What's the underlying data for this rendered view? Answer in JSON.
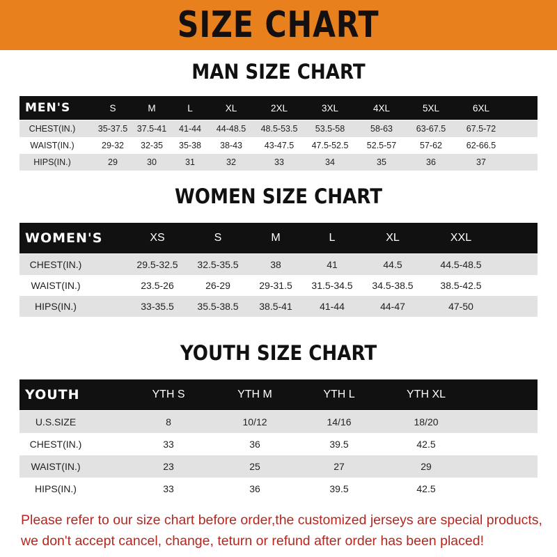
{
  "banner": {
    "title": "SIZE CHART",
    "color": "#e8801e"
  },
  "men": {
    "title": "MAN SIZE CHART",
    "header": [
      "MEN'S",
      "S",
      "M",
      "L",
      "XL",
      "2XL",
      "3XL",
      "4XL",
      "5XL",
      "6XL"
    ],
    "rows": [
      [
        "CHEST(IN.)",
        "35-37.5",
        "37.5-41",
        "41-44",
        "44-48.5",
        "48.5-53.5",
        "53.5-58",
        "58-63",
        "63-67.5",
        "67.5-72"
      ],
      [
        "WAIST(IN.)",
        "29-32",
        "32-35",
        "35-38",
        "38-43",
        "43-47.5",
        "47.5-52.5",
        "52.5-57",
        "57-62",
        "62-66.5"
      ],
      [
        "HIPS(IN.)",
        "29",
        "30",
        "31",
        "32",
        "33",
        "34",
        "35",
        "36",
        "37"
      ]
    ]
  },
  "women": {
    "title": "WOMEN SIZE CHART",
    "header": [
      "WOMEN'S",
      "XS",
      "S",
      "M",
      "L",
      "XL",
      "XXL"
    ],
    "rows": [
      [
        "CHEST(IN.)",
        "29.5-32.5",
        "32.5-35.5",
        "38",
        "41",
        "44.5",
        "44.5-48.5"
      ],
      [
        "WAIST(IN.)",
        "23.5-26",
        "26-29",
        "29-31.5",
        "31.5-34.5",
        "34.5-38.5",
        "38.5-42.5"
      ],
      [
        "HIPS(IN.)",
        "33-35.5",
        "35.5-38.5",
        "38.5-41",
        "41-44",
        "44-47",
        "47-50"
      ]
    ]
  },
  "youth": {
    "title": "YOUTH SIZE CHART",
    "header": [
      "YOUTH",
      "YTH S",
      "YTH M",
      "YTH L",
      "YTH XL"
    ],
    "rows": [
      [
        "U.S.SIZE",
        "8",
        "10/12",
        "14/16",
        "18/20"
      ],
      [
        "CHEST(IN.)",
        "33",
        "36",
        "39.5",
        "42.5"
      ],
      [
        "WAIST(IN.)",
        "23",
        "25",
        "27",
        "29"
      ],
      [
        "HIPS(IN.)",
        "33",
        "36",
        "39.5",
        "42.5"
      ]
    ]
  },
  "footer": {
    "line1": "Please refer to our size chart before order,the customized jerseys are special products,",
    "line2": "we don't accept cancel, change, teturn or refund after order has been placed!",
    "color": "#b5261e"
  }
}
